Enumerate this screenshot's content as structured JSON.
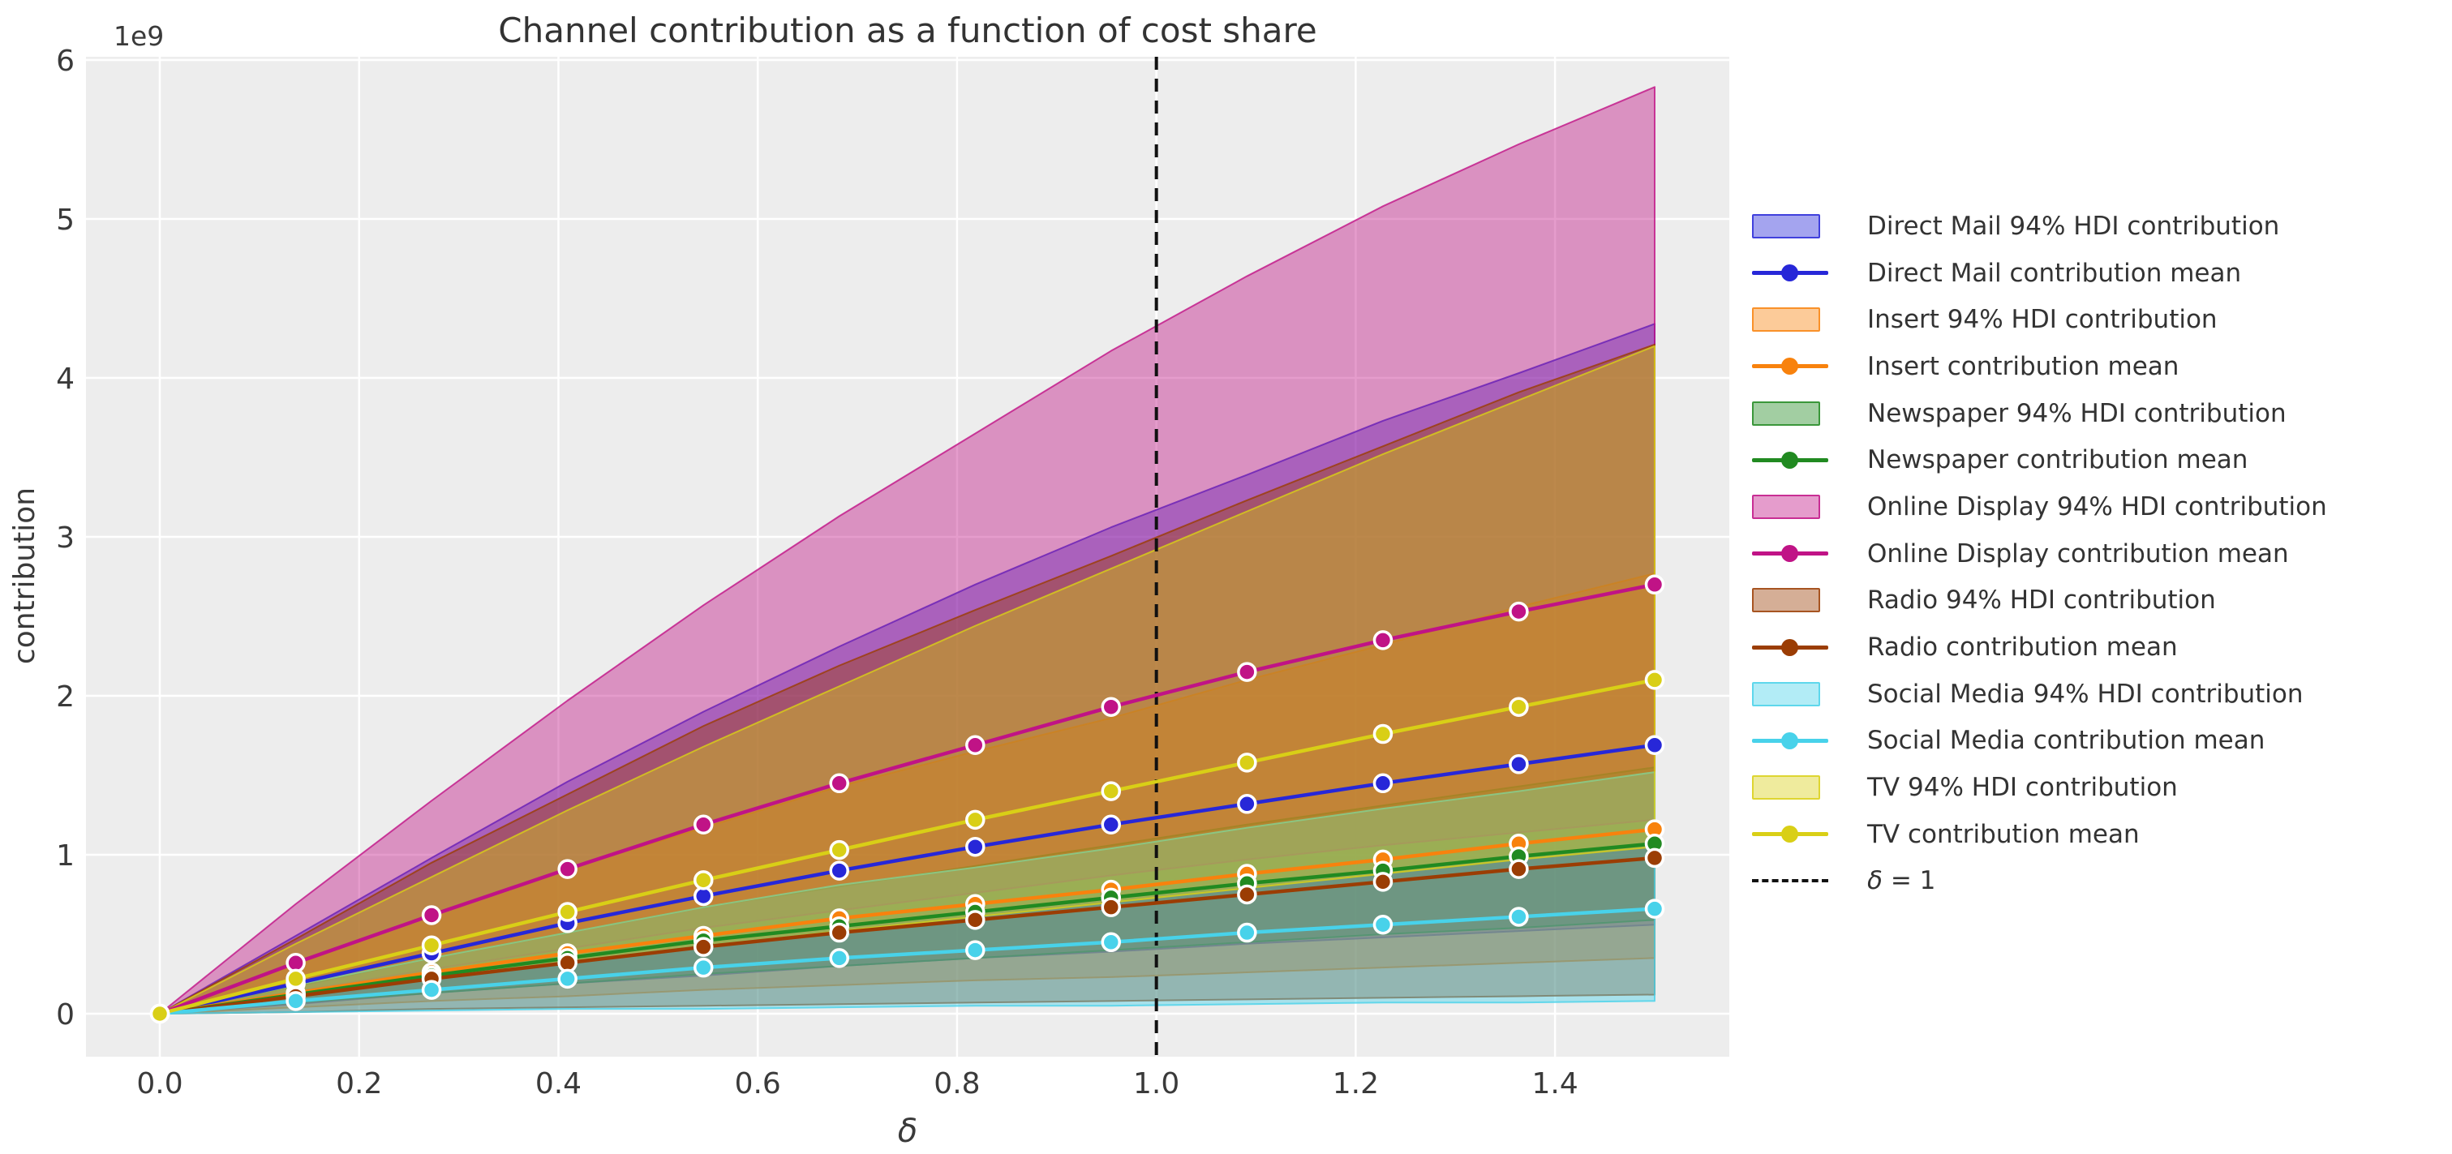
{
  "title": "Channel contribution as a function of cost share",
  "axes": {
    "x_label": "δ",
    "y_label": "contribution",
    "y_offset_label": "1e9",
    "x_ticks": [
      "0.0",
      "0.2",
      "0.4",
      "0.6",
      "0.8",
      "1.0",
      "1.2",
      "1.4"
    ],
    "x_tick_values": [
      0.0,
      0.2,
      0.4,
      0.6,
      0.8,
      1.0,
      1.2,
      1.4
    ],
    "y_ticks": [
      "0",
      "1",
      "2",
      "3",
      "4",
      "5",
      "6"
    ],
    "y_tick_values": [
      0,
      1,
      2,
      3,
      4,
      5,
      6
    ]
  },
  "style": {
    "plot_bg": "#ededed",
    "grid_color": "#ffffff",
    "text_color": "#3a3a3a",
    "title_color": "#333333",
    "vline_color": "#111111",
    "band_alpha": 0.42,
    "band_edge_alpha": 0.8
  },
  "chart_data": {
    "type": "line",
    "title": "Channel contribution as a function of cost share",
    "xlabel": "δ",
    "ylabel": "contribution",
    "y_scale_note": "values in units of 1e9",
    "xlim": [
      -0.074,
      1.575
    ],
    "ylim": [
      -0.28,
      6.12
    ],
    "grid": true,
    "legend_position": "right-outside",
    "x": [
      0.0,
      0.1364,
      0.2727,
      0.4091,
      0.5455,
      0.6818,
      0.8182,
      0.9545,
      1.0909,
      1.2273,
      1.3636,
      1.5
    ],
    "vline": {
      "x": 1.0,
      "label": "δ = 1",
      "style": "dashed",
      "color": "#111111"
    },
    "series": [
      {
        "name": "Direct Mail",
        "color": "#2727d8",
        "mean_label": "Direct Mail contribution mean",
        "hdi_label": "Direct Mail 94% HDI contribution",
        "mean": [
          0,
          0.19,
          0.38,
          0.57,
          0.74,
          0.9,
          1.05,
          1.19,
          1.32,
          1.45,
          1.57,
          1.69
        ],
        "hdi_low": [
          0,
          0.06,
          0.13,
          0.19,
          0.24,
          0.3,
          0.35,
          0.39,
          0.44,
          0.48,
          0.52,
          0.56
        ],
        "hdi_high": [
          0,
          0.49,
          0.98,
          1.46,
          1.9,
          2.31,
          2.7,
          3.06,
          3.39,
          3.73,
          4.03,
          4.34
        ]
      },
      {
        "name": "Insert",
        "color": "#f8820d",
        "mean_label": "Insert contribution mean",
        "hdi_label": "Insert 94% HDI contribution",
        "mean": [
          0,
          0.13,
          0.26,
          0.38,
          0.49,
          0.6,
          0.69,
          0.78,
          0.88,
          0.97,
          1.07,
          1.16
        ],
        "hdi_low": [
          0,
          0.04,
          0.08,
          0.11,
          0.15,
          0.18,
          0.21,
          0.23,
          0.26,
          0.29,
          0.32,
          0.35
        ],
        "hdi_high": [
          0,
          0.31,
          0.62,
          0.91,
          1.17,
          1.43,
          1.65,
          1.86,
          2.1,
          2.32,
          2.56,
          2.77
        ]
      },
      {
        "name": "Newspaper",
        "color": "#218a21",
        "mean_label": "Newspaper contribution mean",
        "hdi_label": "Newspaper 94% HDI contribution",
        "mean": [
          0,
          0.12,
          0.24,
          0.35,
          0.46,
          0.55,
          0.64,
          0.73,
          0.82,
          0.9,
          0.99,
          1.07
        ],
        "hdi_low": [
          0,
          0.07,
          0.13,
          0.19,
          0.25,
          0.3,
          0.35,
          0.4,
          0.45,
          0.5,
          0.54,
          0.59
        ],
        "hdi_high": [
          0,
          0.17,
          0.35,
          0.51,
          0.67,
          0.8,
          0.93,
          1.06,
          1.19,
          1.31,
          1.43,
          1.55
        ]
      },
      {
        "name": "Online Display",
        "color": "#c01386",
        "mean_label": "Online Display contribution mean",
        "hdi_label": "Online Display 94% HDI contribution",
        "mean": [
          0,
          0.32,
          0.62,
          0.91,
          1.19,
          1.45,
          1.69,
          1.93,
          2.15,
          2.35,
          2.53,
          2.7
        ],
        "hdi_low": [
          0,
          0.14,
          0.28,
          0.41,
          0.54,
          0.65,
          0.76,
          0.87,
          0.97,
          1.06,
          1.14,
          1.22
        ],
        "hdi_high": [
          0,
          0.69,
          1.34,
          1.97,
          2.57,
          3.13,
          3.65,
          4.17,
          4.64,
          5.08,
          5.47,
          5.83
        ]
      },
      {
        "name": "Radio",
        "color": "#9b3d04",
        "mean_label": "Radio contribution mean",
        "hdi_label": "Radio 94% HDI contribution",
        "mean": [
          0,
          0.11,
          0.22,
          0.32,
          0.42,
          0.51,
          0.59,
          0.67,
          0.75,
          0.83,
          0.91,
          0.98
        ],
        "hdi_low": [
          0,
          0.01,
          0.03,
          0.04,
          0.05,
          0.06,
          0.07,
          0.08,
          0.09,
          0.1,
          0.11,
          0.12
        ],
        "hdi_high": [
          0,
          0.47,
          0.95,
          1.38,
          1.81,
          2.19,
          2.54,
          2.88,
          3.23,
          3.57,
          3.91,
          4.21
        ]
      },
      {
        "name": "Social Media",
        "color": "#48d2ea",
        "mean_label": "Social Media contribution mean",
        "hdi_label": "Social Media 94% HDI contribution",
        "mean": [
          0,
          0.08,
          0.15,
          0.22,
          0.29,
          0.35,
          0.4,
          0.45,
          0.51,
          0.56,
          0.61,
          0.66
        ],
        "hdi_low": [
          0,
          0.01,
          0.02,
          0.03,
          0.03,
          0.04,
          0.05,
          0.05,
          0.06,
          0.07,
          0.07,
          0.08
        ],
        "hdi_high": [
          0,
          0.18,
          0.35,
          0.51,
          0.67,
          0.81,
          0.92,
          1.04,
          1.17,
          1.29,
          1.4,
          1.52
        ]
      },
      {
        "name": "TV",
        "color": "#d9cf16",
        "mean_label": "TV contribution mean",
        "hdi_label": "TV 94% HDI contribution",
        "mean": [
          0,
          0.22,
          0.43,
          0.64,
          0.84,
          1.03,
          1.22,
          1.4,
          1.58,
          1.76,
          1.93,
          2.1
        ],
        "hdi_low": [
          0,
          0.11,
          0.22,
          0.32,
          0.42,
          0.52,
          0.61,
          0.7,
          0.79,
          0.88,
          0.97,
          1.05
        ],
        "hdi_high": [
          0,
          0.44,
          0.86,
          1.28,
          1.68,
          2.06,
          2.44,
          2.8,
          3.16,
          3.52,
          3.86,
          4.2
        ]
      }
    ]
  },
  "legend": {
    "items": [
      {
        "type": "patch",
        "series": "Direct Mail",
        "label": "Direct Mail 94% HDI contribution"
      },
      {
        "type": "line",
        "series": "Direct Mail",
        "label": "Direct Mail contribution mean"
      },
      {
        "type": "patch",
        "series": "Insert",
        "label": "Insert 94% HDI contribution"
      },
      {
        "type": "line",
        "series": "Insert",
        "label": "Insert contribution mean"
      },
      {
        "type": "patch",
        "series": "Newspaper",
        "label": "Newspaper 94% HDI contribution"
      },
      {
        "type": "line",
        "series": "Newspaper",
        "label": "Newspaper contribution mean"
      },
      {
        "type": "patch",
        "series": "Online Display",
        "label": "Online Display 94% HDI contribution"
      },
      {
        "type": "line",
        "series": "Online Display",
        "label": "Online Display contribution mean"
      },
      {
        "type": "patch",
        "series": "Radio",
        "label": "Radio 94% HDI contribution"
      },
      {
        "type": "line",
        "series": "Radio",
        "label": "Radio contribution mean"
      },
      {
        "type": "patch",
        "series": "Social Media",
        "label": "Social Media 94% HDI contribution"
      },
      {
        "type": "line",
        "series": "Social Media",
        "label": "Social Media contribution mean"
      },
      {
        "type": "patch",
        "series": "TV",
        "label": "TV 94% HDI contribution"
      },
      {
        "type": "line",
        "series": "TV",
        "label": "TV contribution mean"
      },
      {
        "type": "dash",
        "series": "vline",
        "label": "δ = 1"
      }
    ]
  }
}
